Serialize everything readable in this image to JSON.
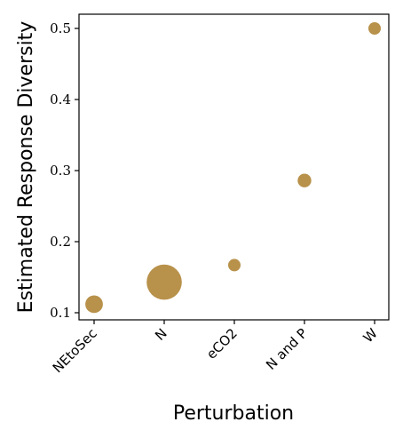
{
  "chart_data": {
    "type": "scatter",
    "title": "",
    "xlabel": "Perturbation",
    "ylabel": "Estimated Response Diversity",
    "categories": [
      "NEtoSec",
      "N",
      "eCO2",
      "N and P",
      "W"
    ],
    "series": [
      {
        "values": [
          0.112,
          0.143,
          0.167,
          0.286,
          0.5
        ],
        "relative_sizes": [
          2.0,
          8.0,
          1.0,
          1.2,
          1.0
        ]
      }
    ],
    "ylim": [
      0.09,
      0.52
    ],
    "yticks": [
      0.1,
      0.2,
      0.3,
      0.4,
      0.5
    ],
    "ytick_labels": [
      "0.1",
      "0.2",
      "0.3",
      "0.4",
      "0.5"
    ],
    "grid": false,
    "legend": "none",
    "colors": {
      "marker": "#b8914a",
      "axis": "#000000"
    }
  }
}
